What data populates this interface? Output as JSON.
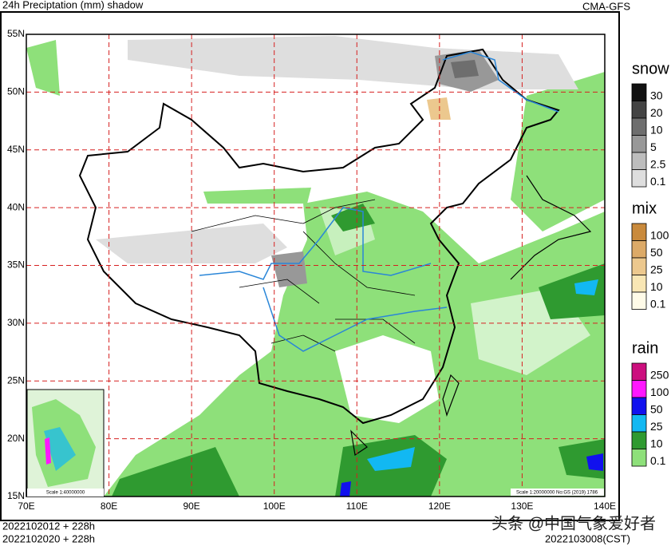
{
  "header": {
    "title": "24h Preciptation (mm) shadow",
    "model": "CMA-GFS"
  },
  "map": {
    "lon_lines": [
      {
        "value": 70,
        "label": "70E"
      },
      {
        "value": 80,
        "label": "80E"
      },
      {
        "value": 90,
        "label": "90E"
      },
      {
        "value": 100,
        "label": "100E"
      },
      {
        "value": 110,
        "label": "110E"
      },
      {
        "value": 120,
        "label": "120E"
      },
      {
        "value": 130,
        "label": "130E"
      },
      {
        "value": 140,
        "label": "140E"
      }
    ],
    "lat_lines": [
      {
        "value": 55,
        "label": "55N"
      },
      {
        "value": 50,
        "label": "50N"
      },
      {
        "value": 45,
        "label": "45N"
      },
      {
        "value": 40,
        "label": "40N"
      },
      {
        "value": 35,
        "label": "35N"
      },
      {
        "value": 30,
        "label": "30N"
      },
      {
        "value": 25,
        "label": "25N"
      },
      {
        "value": 20,
        "label": "20N"
      },
      {
        "value": 15,
        "label": "15N"
      }
    ],
    "scale_main": "Scale 1:20000000 No:GS (2019) 1786",
    "scale_inset": "Scale 1:40000000"
  },
  "legends": [
    {
      "title": "snow",
      "levels": [
        {
          "label": "30",
          "color": "#111111"
        },
        {
          "label": "20",
          "color": "#444444"
        },
        {
          "label": "10",
          "color": "#6e6e6e"
        },
        {
          "label": "5",
          "color": "#989898"
        },
        {
          "label": "2.5",
          "color": "#bdbdbd"
        },
        {
          "label": "0.1",
          "color": "#dedede"
        }
      ]
    },
    {
      "title": "mix",
      "levels": [
        {
          "label": "100",
          "color": "#c98a3c"
        },
        {
          "label": "50",
          "color": "#dcaa68"
        },
        {
          "label": "25",
          "color": "#ecc88e"
        },
        {
          "label": "10",
          "color": "#f8e6b4"
        },
        {
          "label": "0.1",
          "color": "#fffbe8"
        }
      ]
    },
    {
      "title": "rain",
      "levels": [
        {
          "label": "250",
          "color": "#cc0f7e"
        },
        {
          "label": "100",
          "color": "#ff17ff"
        },
        {
          "label": "50",
          "color": "#1111ee"
        },
        {
          "label": "25",
          "color": "#12b8f2"
        },
        {
          "label": "10",
          "color": "#2f9a30"
        },
        {
          "label": "0.1",
          "color": "#8ee07a"
        }
      ]
    }
  ],
  "footer": {
    "init_1": "2022102012 + 228h",
    "init_2": "2022102020 + 228h",
    "valid": "2022103008(CST)",
    "watermark": "头条 @中国气象爱好者"
  }
}
